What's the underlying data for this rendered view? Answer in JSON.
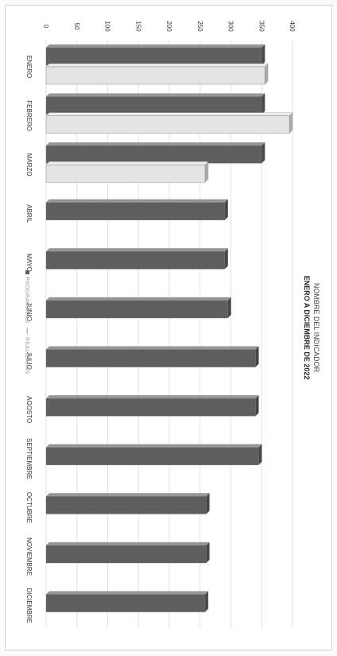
{
  "chart_data": {
    "type": "bar",
    "orientation": "vertical-bars-rotated-page",
    "title": "NOMBRE DEL INDICADOR",
    "subtitle": "ENERO A DICIEMBRE DE 2022",
    "categories": [
      "ENERO",
      "FEBRERO",
      "MARZO",
      "ABRIL",
      "MAYO",
      "JUNIO",
      "JULIO",
      "AGOSTO",
      "SEPTIEMBRE",
      "OCTUBRE",
      "NOVIEMBRE",
      "DICIEMBRE"
    ],
    "series": [
      {
        "name": "PROGRAMADAS",
        "color": "#5e5e5e",
        "values": [
          350,
          350,
          350,
          290,
          290,
          295,
          340,
          340,
          345,
          260,
          260,
          258
        ]
      },
      {
        "name": "REALIZADAS",
        "color": "#e4e4e4",
        "values": [
          355,
          395,
          258,
          null,
          null,
          null,
          null,
          null,
          null,
          null,
          null,
          null
        ]
      }
    ],
    "ylim": [
      0,
      400
    ],
    "yticks": [
      "0",
      "50",
      "100",
      "150",
      "200",
      "250",
      "300",
      "350",
      "400"
    ],
    "grid": true,
    "legend": "bottom"
  }
}
